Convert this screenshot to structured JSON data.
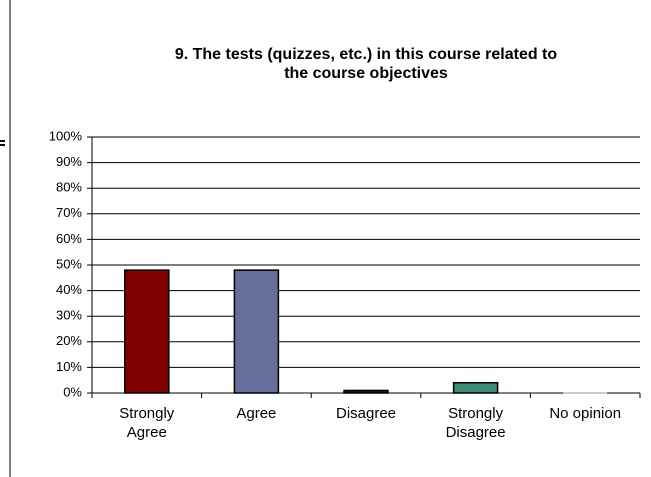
{
  "chart_data": {
    "type": "bar",
    "title": "9. The tests (quizzes, etc.) in this course related to the course objectives",
    "categories": [
      "Strongly Agree",
      "Agree",
      "Disagree",
      "Strongly Disagree",
      "No opinion"
    ],
    "values": [
      48,
      48,
      1,
      4,
      0
    ],
    "colors": [
      "#800000",
      "#666f99",
      "#1a1a1a",
      "#3f8a76",
      "#999999"
    ],
    "ylim": [
      0,
      100
    ],
    "yticks": [
      {
        "value": 0,
        "label": "0%"
      },
      {
        "value": 10,
        "label": "10%"
      },
      {
        "value": 20,
        "label": "20%"
      },
      {
        "value": 30,
        "label": "30%"
      },
      {
        "value": 40,
        "label": "40%"
      },
      {
        "value": 50,
        "label": "50%"
      },
      {
        "value": 60,
        "label": "60%"
      },
      {
        "value": 70,
        "label": "70%"
      },
      {
        "value": 80,
        "label": "80%"
      },
      {
        "value": 90,
        "label": "90%"
      },
      {
        "value": 100,
        "label": "100%"
      }
    ],
    "grid": true
  }
}
